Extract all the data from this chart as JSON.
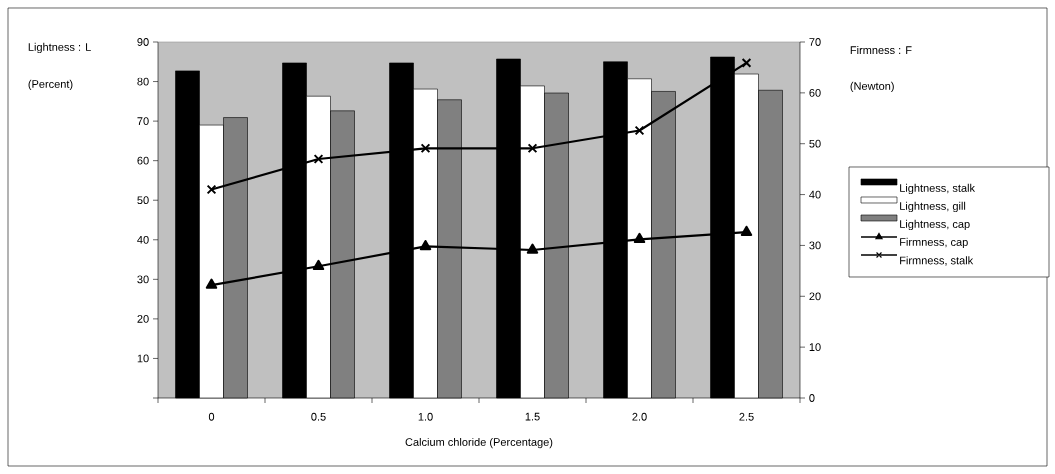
{
  "chart_data": {
    "type": "bar",
    "categories": [
      "0",
      "0.5",
      "1.0",
      "1.5",
      "2.0",
      "2.5"
    ],
    "series": [
      {
        "name": "Lightness, stalk",
        "color": "#000000",
        "values": [
          82.7,
          84.7,
          84.7,
          85.7,
          85.0,
          86.2
        ]
      },
      {
        "name": "Lightness, gill",
        "color": "#ffffff",
        "values": [
          69.0,
          76.3,
          78.1,
          78.9,
          80.7,
          81.9
        ]
      },
      {
        "name": "Lightness, cap",
        "color": "#808080",
        "values": [
          70.9,
          72.6,
          75.4,
          77.1,
          77.5,
          77.8
        ]
      },
      {
        "name": "Firmness, cap",
        "type": "line",
        "axis": "y2",
        "marker": "triangle",
        "color": "#000000",
        "values": [
          22.2,
          25.9,
          29.8,
          29.1,
          31.2,
          32.6
        ]
      },
      {
        "name": "Firmness, stalk",
        "type": "line",
        "axis": "y2",
        "marker": "cross",
        "color": "#000000",
        "values": [
          41.0,
          47.0,
          49.1,
          49.1,
          52.6,
          65.9
        ]
      }
    ],
    "xlabel": "Calcium chloride (Percentage)",
    "ylabel": "Lightness :  L",
    "y2label": "Firmness : F",
    "annotations": [
      "(Percent)",
      "(Newton)"
    ],
    "ylim": [
      0,
      90
    ],
    "yticks": [
      {
        "value": 0,
        "label": null
      },
      10,
      20,
      30,
      40,
      50,
      60,
      70,
      80,
      90
    ],
    "y2lim": [
      0,
      70
    ],
    "y2ticks": [
      0,
      10,
      20,
      30,
      40,
      50,
      60,
      70
    ],
    "legend": "right"
  }
}
